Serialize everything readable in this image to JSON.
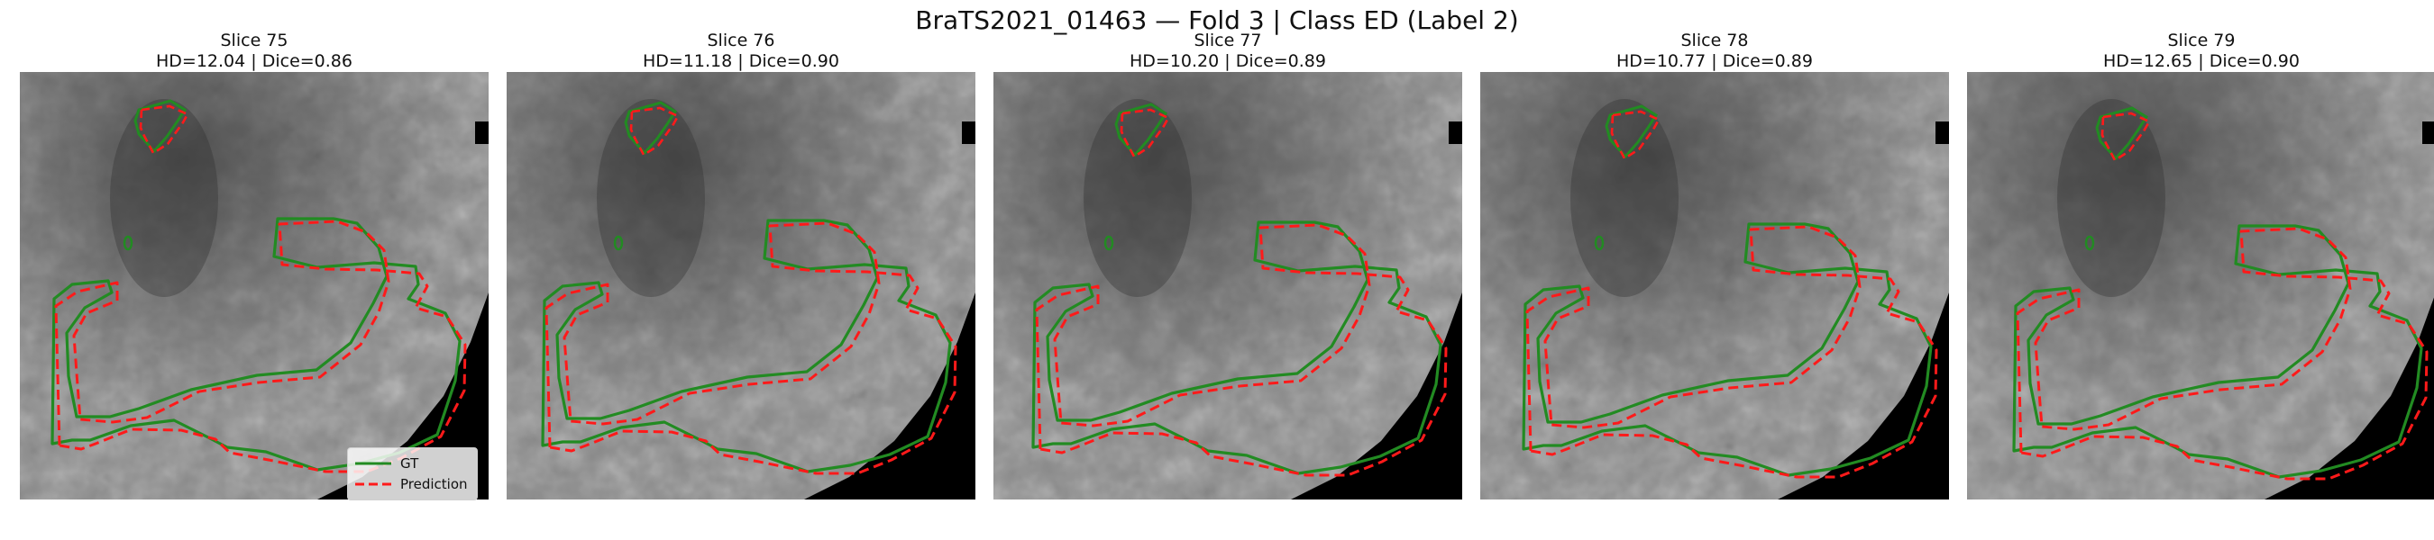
{
  "figure": {
    "title": "BraTS2021_01463 — Fold 3 | Class ED (Label 2)"
  },
  "colors": {
    "gt": "#228b22",
    "prediction": "#ff1a1a",
    "background": "#000000"
  },
  "panels": [
    {
      "slice_label": "Slice 75",
      "metrics": "HD=12.04 | Dice=0.86"
    },
    {
      "slice_label": "Slice 76",
      "metrics": "HD=11.18 | Dice=0.90"
    },
    {
      "slice_label": "Slice 77",
      "metrics": "HD=10.20 | Dice=0.89"
    },
    {
      "slice_label": "Slice 78",
      "metrics": "HD=10.77 | Dice=0.89"
    },
    {
      "slice_label": "Slice 79",
      "metrics": "HD=12.65 | Dice=0.90"
    }
  ],
  "legend": {
    "gt_label": "GT",
    "prediction_label": "Prediction"
  }
}
